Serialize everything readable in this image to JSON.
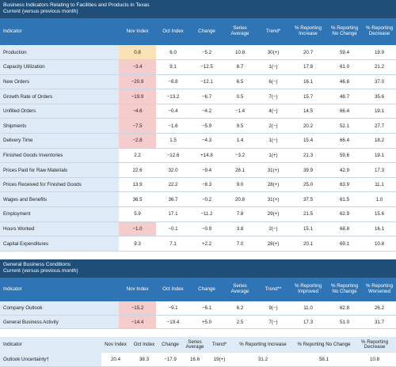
{
  "section1": {
    "title": "Business Indicators Relating to Facilities and Products in Texas",
    "subtitle": "Current (versus previous month)",
    "headers": [
      "Indicator",
      "Nov Index",
      "Oct Index",
      "Change",
      "Series Average",
      "Trend*",
      "% Reporting Increase",
      "% Reporting No Change",
      "% Reporting Decrease"
    ],
    "rows": [
      [
        "Production",
        "0.8",
        "6.0",
        "−5.2",
        "10.8",
        "30(+)",
        "20.7",
        "59.4",
        "19.9"
      ],
      [
        "Capacity Utilization",
        "−3.4",
        "9.1",
        "−12.5",
        "8.7",
        "1(−)",
        "17.8",
        "61.0",
        "21.2"
      ],
      [
        "New Orders",
        "−20.9",
        "−8.8",
        "−12.1",
        "6.5",
        "6(−)",
        "16.1",
        "46.8",
        "37.0"
      ],
      [
        "Growth Rate of Orders",
        "−19.9",
        "−13.2",
        "−6.7",
        "0.5",
        "7(−)",
        "15.7",
        "48.7",
        "35.6"
      ],
      [
        "Unfilled Orders",
        "−4.6",
        "−0.4",
        "−4.2",
        "−1.4",
        "4(−)",
        "14.5",
        "66.4",
        "19.1"
      ],
      [
        "Shipments",
        "−7.5",
        "−1.6",
        "−5.9",
        "9.5",
        "2(−)",
        "20.2",
        "52.1",
        "27.7"
      ],
      [
        "Delivery Time",
        "−2.8",
        "1.5",
        "−4.3",
        "1.4",
        "1(−)",
        "15.4",
        "66.4",
        "18.2"
      ],
      [
        "Finished Goods Inventories",
        "2.2",
        "−12.6",
        "+14.8",
        "−3.2",
        "1(+)",
        "21.3",
        "59.6",
        "19.1"
      ],
      [
        "Prices Paid for Raw Materials",
        "22.6",
        "32.0",
        "−9.4",
        "28.1",
        "31(+)",
        "39.9",
        "42.9",
        "17.3"
      ],
      [
        "Prices Received for Finished Goods",
        "13.9",
        "22.2",
        "−8.3",
        "9.0",
        "28(+)",
        "25.0",
        "63.9",
        "11.1"
      ],
      [
        "Wages and Benefits",
        "36.5",
        "36.7",
        "−0.2",
        "20.8",
        "31(+)",
        "37.5",
        "61.5",
        "1.0"
      ],
      [
        "Employment",
        "5.9",
        "17.1",
        "−11.2",
        "7.8",
        "29(+)",
        "21.5",
        "62.9",
        "15.6"
      ],
      [
        "Hours Worked",
        "−1.0",
        "−0.1",
        "−0.9",
        "3.8",
        "2(−)",
        "15.1",
        "68.8",
        "16.1"
      ],
      [
        "Capital Expenditures",
        "9.3",
        "7.1",
        "+2.2",
        "7.0",
        "28(+)",
        "20.1",
        "69.1",
        "10.8"
      ]
    ]
  },
  "section2": {
    "title": "General Business Conditions",
    "subtitle": "Current (versus previous month)",
    "headers": [
      "Indicator",
      "Nov Index",
      "Oct Index",
      "Change",
      "Series Average",
      "Trend**",
      "% Reporting Improved",
      "% Reporting No Change",
      "% Reporting Worsened"
    ],
    "rows": [
      [
        "Company Outlook",
        "−15.2",
        "−9.1",
        "−6.1",
        "6.2",
        "9(−)",
        "11.0",
        "62.8",
        "26.2"
      ],
      [
        "General Business Activity",
        "−14.4",
        "−19.4",
        "+5.0",
        "2.5",
        "7(−)",
        "17.3",
        "51.0",
        "31.7"
      ]
    ]
  },
  "section3": {
    "headers": [
      "Indicator",
      "Nov Index",
      "Oct Index",
      "Change",
      "Series Average",
      "Trend*",
      "% Reporting Increase",
      "% Reporting No Change",
      "% Reporting Decrease"
    ],
    "rows": [
      [
        "Outlook Uncertainty†",
        "20.4",
        "38.3",
        "−17.9",
        "16.6",
        "19(+)",
        "31.2",
        "58.1",
        "10.8"
      ]
    ]
  },
  "highlight_colors": {
    "negative": "#f4cccc",
    "low_positive": "#fbe1b6"
  }
}
